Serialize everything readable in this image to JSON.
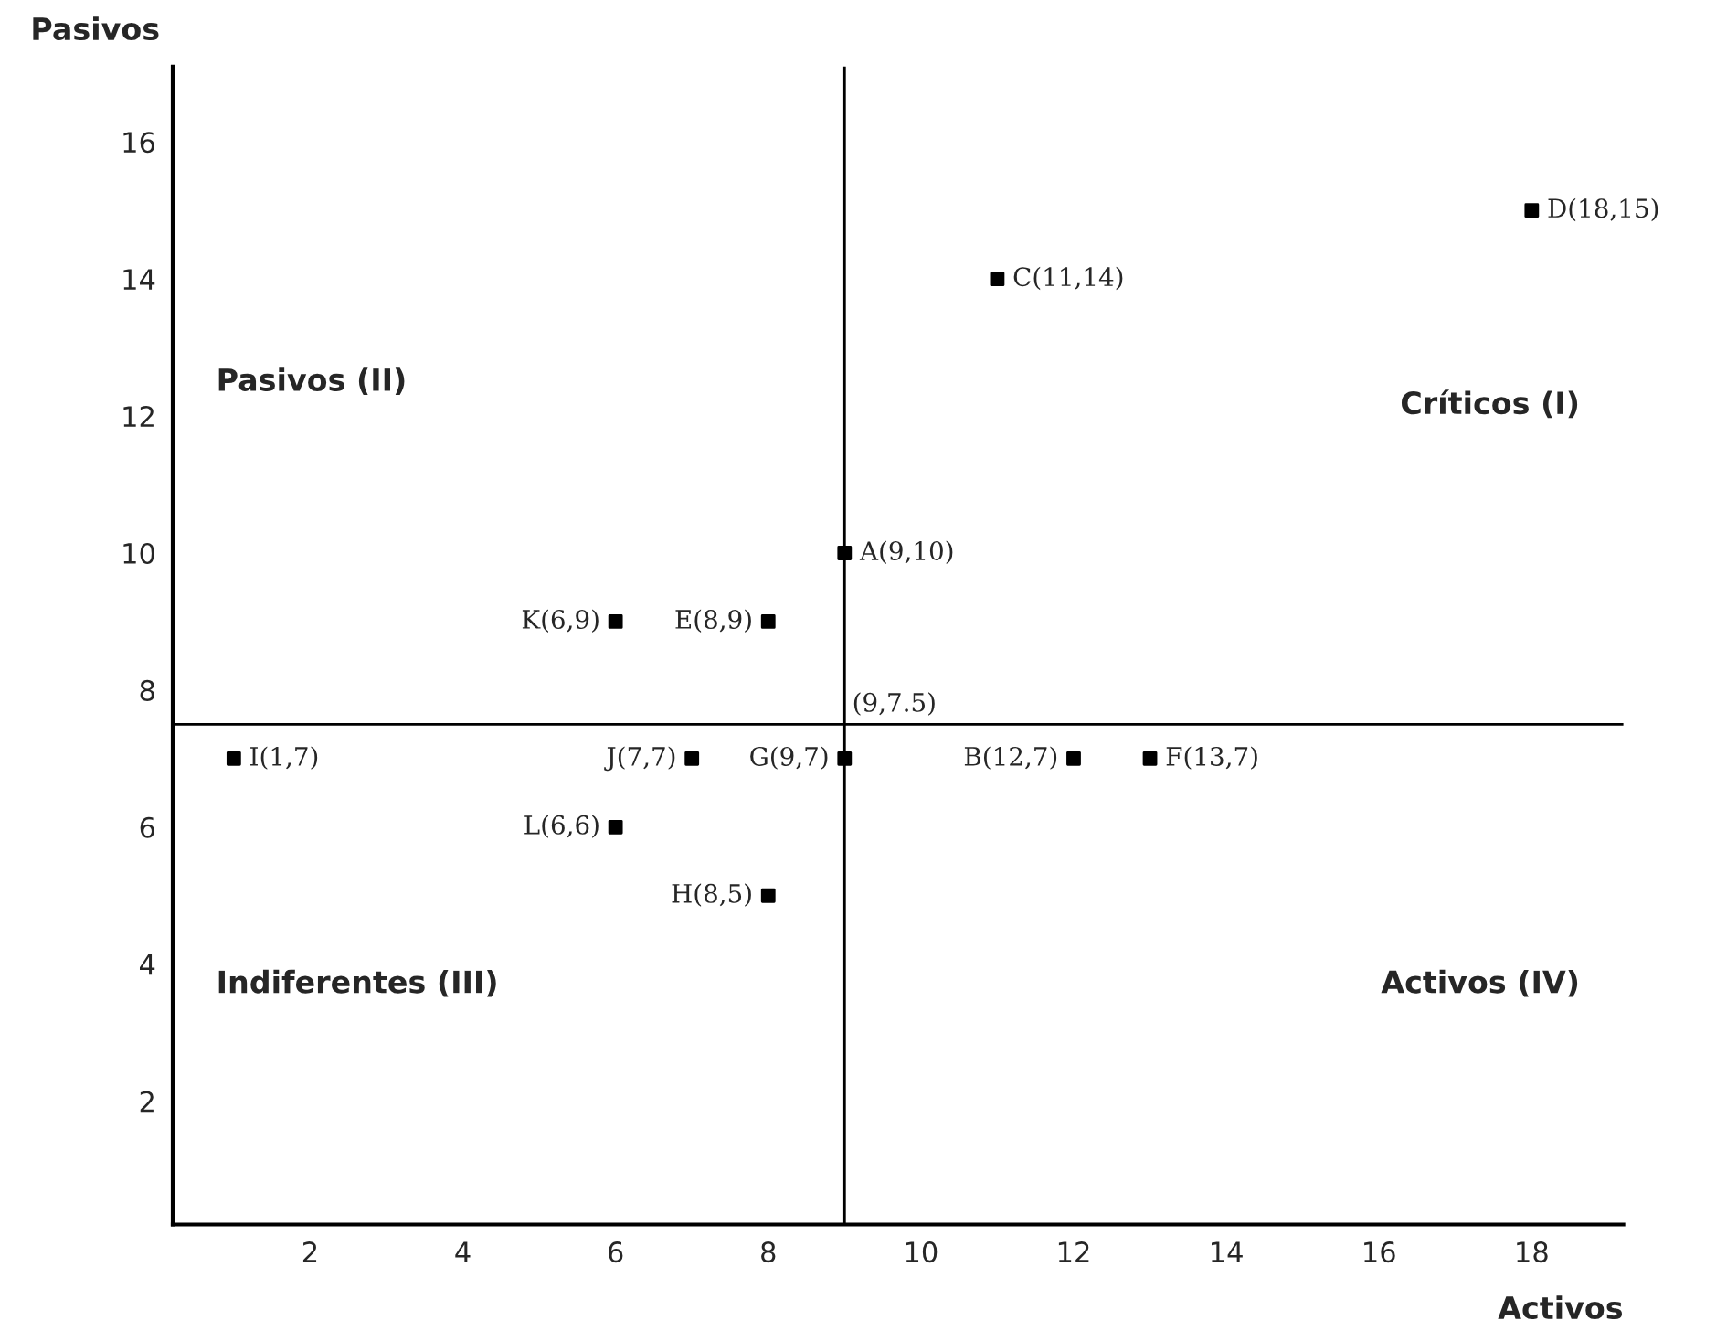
{
  "chart_data": {
    "type": "scatter",
    "xlabel": "Activos",
    "ylabel": "Pasivos",
    "x": [
      9,
      12,
      11,
      18,
      8,
      13,
      9,
      8,
      1,
      7,
      6,
      6
    ],
    "series": [
      {
        "color": "#000000",
        "values": [
          10,
          7,
          14,
          15,
          9,
          7,
          7,
          5,
          7,
          7,
          9,
          6
        ],
        "value_labels": [
          "A(9,10)",
          "B(12,7)",
          "C(11,14)",
          "D(18,15)",
          "E(8,9)",
          "F(13,7)",
          "G(9,7)",
          "H(8,5)",
          "I(1,7)",
          "J(7,7)",
          "K(6,9)",
          "L(6,6)"
        ]
      }
    ],
    "marker": "square",
    "xlim": [
      0.2,
      19.2
    ],
    "ylim": [
      0.2,
      17.1
    ],
    "xticks": [
      2,
      4,
      6,
      8,
      10,
      12,
      14,
      16,
      18
    ],
    "yticks": [
      2,
      4,
      6,
      8,
      10,
      12,
      14,
      16
    ],
    "ref_lines": [
      {
        "axis": "x",
        "value": 9,
        "color": "#000000"
      },
      {
        "axis": "y",
        "value": 7.5,
        "color": "#000000"
      }
    ],
    "annotations": [
      {
        "text": "(9,7.5)",
        "x": 9,
        "y": 7.5
      },
      "Críticos (I)",
      "Pasivos (II)",
      "Indiferentes (III)",
      "Activos (IV)"
    ],
    "grid": false,
    "legend": false
  }
}
